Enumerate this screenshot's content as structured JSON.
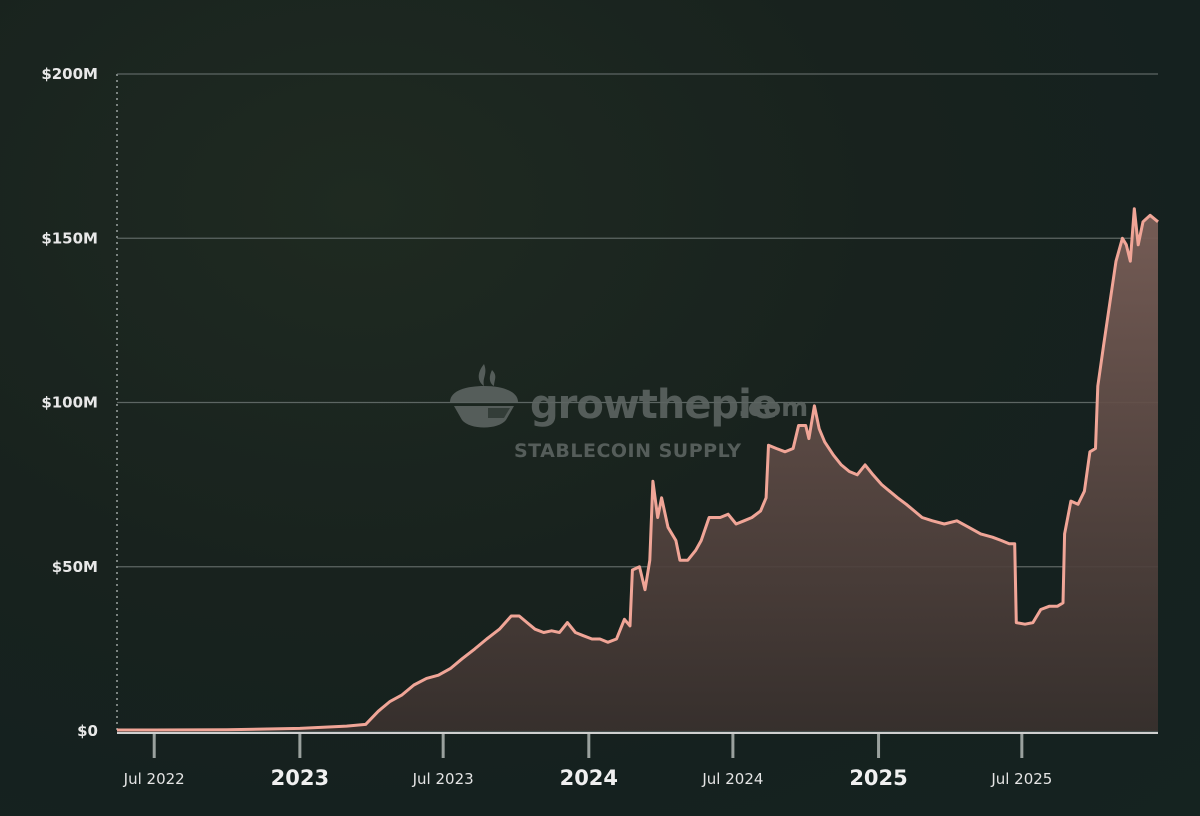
{
  "watermark": {
    "brand": "growthepie",
    "domain": ".com",
    "subtitle": "STABLECOIN SUPPLY",
    "icon": "pie-logo-icon"
  },
  "colors": {
    "line": "#f0a597",
    "area_top": "#7a5f58",
    "area_bottom": "#3a312e",
    "grid": "#5d6663"
  },
  "chart_data": {
    "type": "area",
    "title": "",
    "xlabel": "",
    "ylabel": "",
    "y_ticks": [
      {
        "value": 0,
        "label": "$0"
      },
      {
        "value": 50,
        "label": "$50M"
      },
      {
        "value": 100,
        "label": "$100M"
      },
      {
        "value": 150,
        "label": "$150M"
      },
      {
        "value": 200,
        "label": "$200M"
      }
    ],
    "x_ticks": [
      {
        "date": "2022-07-01",
        "label": "Jul 2022",
        "major": false
      },
      {
        "date": "2023-01-01",
        "label": "2023",
        "major": true
      },
      {
        "date": "2023-07-01",
        "label": "Jul 2023",
        "major": false
      },
      {
        "date": "2024-01-01",
        "label": "2024",
        "major": true
      },
      {
        "date": "2024-07-01",
        "label": "Jul 2024",
        "major": false
      },
      {
        "date": "2025-01-01",
        "label": "2025",
        "major": true
      },
      {
        "date": "2025-07-01",
        "label": "Jul 2025",
        "major": false
      }
    ],
    "ylim": [
      0,
      200
    ],
    "xlim": [
      "2022-05-15",
      "2025-12-20"
    ],
    "y_unit": "USD millions",
    "grid": true,
    "series": [
      {
        "name": "",
        "points": [
          [
            "2022-05-15",
            0.3
          ],
          [
            "2022-07-01",
            0.3
          ],
          [
            "2022-10-01",
            0.4
          ],
          [
            "2023-01-01",
            0.8
          ],
          [
            "2023-03-01",
            1.5
          ],
          [
            "2023-03-25",
            2.0
          ],
          [
            "2023-04-10",
            6
          ],
          [
            "2023-04-25",
            9
          ],
          [
            "2023-05-10",
            11
          ],
          [
            "2023-05-25",
            14
          ],
          [
            "2023-06-10",
            16
          ],
          [
            "2023-06-25",
            17
          ],
          [
            "2023-07-10",
            19
          ],
          [
            "2023-07-25",
            22
          ],
          [
            "2023-08-10",
            25
          ],
          [
            "2023-08-25",
            28
          ],
          [
            "2023-09-10",
            31
          ],
          [
            "2023-09-25",
            35
          ],
          [
            "2023-10-05",
            35
          ],
          [
            "2023-10-15",
            33
          ],
          [
            "2023-10-25",
            31
          ],
          [
            "2023-11-05",
            30
          ],
          [
            "2023-11-15",
            30.5
          ],
          [
            "2023-11-25",
            30
          ],
          [
            "2023-12-05",
            33
          ],
          [
            "2023-12-15",
            30
          ],
          [
            "2023-12-25",
            29
          ],
          [
            "2024-01-05",
            28
          ],
          [
            "2024-01-15",
            28
          ],
          [
            "2024-01-25",
            27
          ],
          [
            "2024-02-05",
            28
          ],
          [
            "2024-02-15",
            34
          ],
          [
            "2024-02-22",
            32
          ],
          [
            "2024-02-25",
            49
          ],
          [
            "2024-03-05",
            50
          ],
          [
            "2024-03-12",
            43
          ],
          [
            "2024-03-18",
            52
          ],
          [
            "2024-03-22",
            76
          ],
          [
            "2024-03-28",
            65
          ],
          [
            "2024-04-02",
            71
          ],
          [
            "2024-04-10",
            62
          ],
          [
            "2024-04-20",
            58
          ],
          [
            "2024-04-25",
            52
          ],
          [
            "2024-05-05",
            52
          ],
          [
            "2024-05-15",
            55
          ],
          [
            "2024-05-22",
            58
          ],
          [
            "2024-06-01",
            65
          ],
          [
            "2024-06-15",
            65
          ],
          [
            "2024-06-25",
            66
          ],
          [
            "2024-07-05",
            63
          ],
          [
            "2024-07-15",
            64
          ],
          [
            "2024-07-25",
            65
          ],
          [
            "2024-08-05",
            67
          ],
          [
            "2024-08-12",
            71
          ],
          [
            "2024-08-15",
            87
          ],
          [
            "2024-08-25",
            86
          ],
          [
            "2024-09-05",
            85
          ],
          [
            "2024-09-15",
            86
          ],
          [
            "2024-09-22",
            93
          ],
          [
            "2024-10-01",
            93
          ],
          [
            "2024-10-05",
            89
          ],
          [
            "2024-10-12",
            99
          ],
          [
            "2024-10-18",
            92
          ],
          [
            "2024-10-25",
            88
          ],
          [
            "2024-11-05",
            84
          ],
          [
            "2024-11-15",
            81
          ],
          [
            "2024-11-25",
            79
          ],
          [
            "2024-12-05",
            78
          ],
          [
            "2024-12-15",
            81
          ],
          [
            "2024-12-25",
            78
          ],
          [
            "2025-01-05",
            75
          ],
          [
            "2025-01-15",
            73
          ],
          [
            "2025-01-25",
            71
          ],
          [
            "2025-02-05",
            69
          ],
          [
            "2025-02-15",
            67
          ],
          [
            "2025-02-25",
            65
          ],
          [
            "2025-03-10",
            64
          ],
          [
            "2025-03-25",
            63
          ],
          [
            "2025-04-10",
            64
          ],
          [
            "2025-04-25",
            62
          ],
          [
            "2025-05-10",
            60
          ],
          [
            "2025-05-25",
            59
          ],
          [
            "2025-06-05",
            58
          ],
          [
            "2025-06-15",
            57
          ],
          [
            "2025-06-22",
            57
          ],
          [
            "2025-06-24",
            33
          ],
          [
            "2025-07-05",
            32.5
          ],
          [
            "2025-07-15",
            33
          ],
          [
            "2025-07-25",
            37
          ],
          [
            "2025-08-05",
            38
          ],
          [
            "2025-08-15",
            38
          ],
          [
            "2025-08-22",
            39
          ],
          [
            "2025-08-24",
            60
          ],
          [
            "2025-09-01",
            70
          ],
          [
            "2025-09-10",
            69
          ],
          [
            "2025-09-18",
            73
          ],
          [
            "2025-09-25",
            85
          ],
          [
            "2025-10-02",
            86
          ],
          [
            "2025-10-05",
            105
          ],
          [
            "2025-10-12",
            117
          ],
          [
            "2025-10-20",
            130
          ],
          [
            "2025-10-28",
            143
          ],
          [
            "2025-11-05",
            150
          ],
          [
            "2025-11-10",
            148
          ],
          [
            "2025-11-15",
            143
          ],
          [
            "2025-11-20",
            159
          ],
          [
            "2025-11-25",
            148
          ],
          [
            "2025-12-01",
            155
          ],
          [
            "2025-12-10",
            157
          ],
          [
            "2025-12-20",
            155
          ]
        ]
      }
    ]
  }
}
